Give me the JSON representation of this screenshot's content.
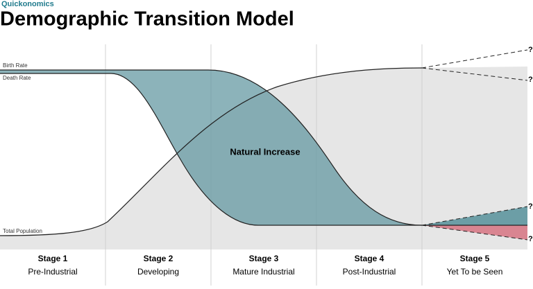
{
  "header": {
    "brand": "Quickonomics",
    "title": "Demographic Transition Model"
  },
  "labels": {
    "birth_rate": "Birth Rate",
    "death_rate": "Death Rate",
    "total_population": "Total Population",
    "natural_increase": "Natural Increase"
  },
  "stages": [
    {
      "name": "Stage 1",
      "description": "Pre-Industrial"
    },
    {
      "name": "Stage 2",
      "description": "Developing"
    },
    {
      "name": "Stage 3",
      "description": "Mature Industrial"
    },
    {
      "name": "Stage 4",
      "description": "Post-Industrial"
    },
    {
      "name": "Stage 5",
      "description": "Yet To be Seen"
    }
  ],
  "unknown_marks": [
    "?",
    "?",
    "?",
    "?"
  ]
}
